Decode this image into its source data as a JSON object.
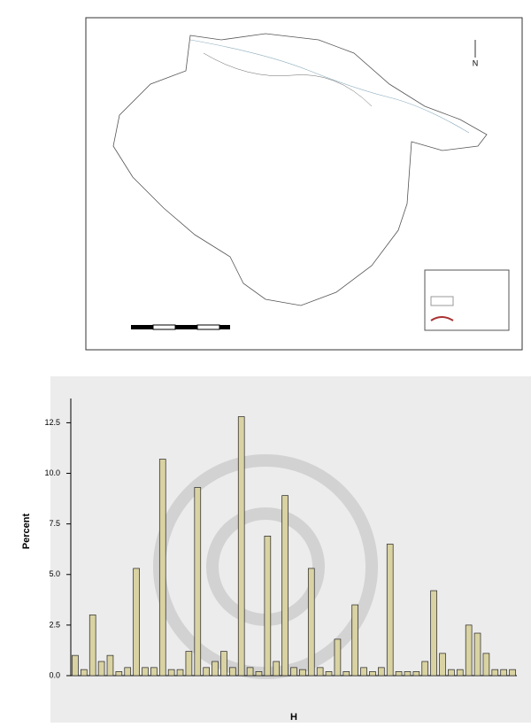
{
  "map": {
    "north_label": "N"
  },
  "chart_data": {
    "type": "bar",
    "y_label": "Percent",
    "x_label": "H",
    "categories": [
      null,
      null,
      null,
      null,
      null,
      null,
      null,
      null,
      null,
      null,
      null,
      null,
      null,
      null,
      null,
      null,
      null,
      null,
      null,
      null,
      null,
      null,
      null,
      null,
      null,
      null,
      null,
      null,
      null,
      null,
      null,
      null,
      null,
      null,
      null,
      null,
      null,
      null,
      null,
      null,
      null,
      null,
      null,
      null,
      null,
      null,
      null,
      null,
      null,
      null,
      null
    ],
    "values": [
      1.0,
      0.3,
      3.0,
      0.7,
      1.0,
      0.2,
      0.4,
      5.3,
      0.4,
      0.4,
      10.7,
      0.3,
      0.3,
      1.2,
      9.3,
      0.4,
      0.7,
      1.2,
      0.4,
      12.8,
      0.4,
      0.2,
      6.9,
      0.7,
      8.9,
      0.4,
      0.3,
      5.3,
      0.4,
      0.2,
      1.8,
      0.2,
      3.5,
      0.4,
      0.2,
      0.4,
      6.5,
      0.2,
      0.2,
      0.2,
      0.7,
      4.2,
      1.1,
      0.3,
      0.3,
      2.5,
      2.1,
      1.1,
      0.3,
      0.3,
      0.3
    ],
    "color": "#d9d2a2",
    "ylim": [
      0,
      13.7
    ],
    "yticks": [
      {
        "value": 0,
        "label": "0.0"
      },
      {
        "value": 2.5,
        "label": "2.5"
      },
      {
        "value": 5,
        "label": "5.0"
      },
      {
        "value": 7.5,
        "label": "7.5"
      },
      {
        "value": 10,
        "label": "10.0"
      },
      {
        "value": 12.5,
        "label": "12.5"
      }
    ]
  }
}
